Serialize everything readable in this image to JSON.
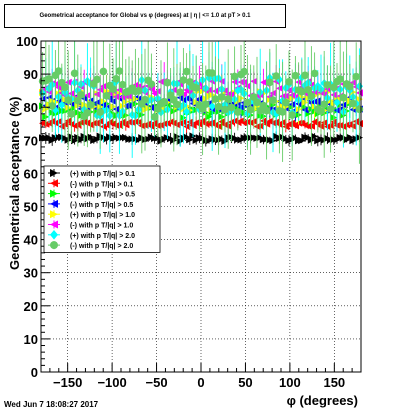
{
  "chart_data": {
    "type": "scatter",
    "title": "Geometrical acceptance for Global vs φ (degrees) at | η | <= 1.0 at pT > 0.1",
    "xlabel": "φ (degrees)",
    "ylabel": "Geometrical acceptance (%)",
    "xlim": [
      -180,
      180
    ],
    "ylim": [
      0,
      100
    ],
    "x_ticks": [
      -150,
      -100,
      -50,
      0,
      50,
      100,
      150
    ],
    "y_ticks": [
      0,
      10,
      20,
      30,
      40,
      50,
      60,
      70,
      80,
      90,
      100
    ],
    "grid": true,
    "legend_position": "center-left",
    "series": [
      {
        "name": "(+) with p T/|q| > 0.1",
        "color": "#000000",
        "marker": "triangle-right",
        "level": 70.5,
        "spread": 0.8,
        "err": 1.2
      },
      {
        "name": "(-) with p T/|q| > 0.1",
        "color": "#ff0000",
        "marker": "triangle-left",
        "level": 75,
        "spread": 0.9,
        "err": 1.3
      },
      {
        "name": "(+) with p T/|q| > 0.5",
        "color": "#00ff00",
        "marker": "triangle-right",
        "level": 79,
        "spread": 2.2,
        "err": 3
      },
      {
        "name": "(-) with p T/|q| > 0.5",
        "color": "#0000ff",
        "marker": "triangle-left",
        "level": 81,
        "spread": 2,
        "err": 3
      },
      {
        "name": "(+) with p T/|q| > 1.0",
        "color": "#ffff00",
        "marker": "triangle-right",
        "level": 82,
        "spread": 3,
        "err": 4
      },
      {
        "name": "(-) with p T/|q| > 1.0",
        "color": "#ff00ff",
        "marker": "triangle-left",
        "level": 85.5,
        "spread": 2.5,
        "err": 4
      },
      {
        "name": "(+) with p T/|q| > 2.0",
        "color": "#00ffff",
        "marker": "diamond",
        "level": 83,
        "spread": 6,
        "err": 9
      },
      {
        "name": "(-) with p T/|q| > 2.0",
        "color": "#66cc66",
        "marker": "circle",
        "level": 84,
        "spread": 7,
        "err": 11
      }
    ]
  },
  "footer": {
    "datestamp": "Wed Jun  7 18:08:27 2017"
  }
}
